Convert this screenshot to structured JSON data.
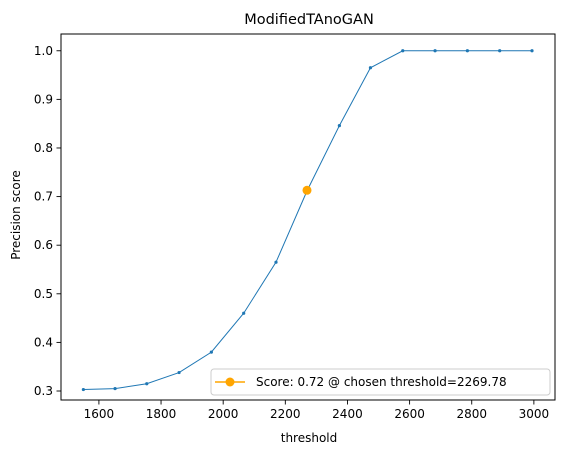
{
  "chart_data": {
    "type": "line",
    "title": "ModifiedTAnoGAN",
    "xlabel": "threshold",
    "ylabel": "Precision score",
    "xlim": [
      1478,
      3068
    ],
    "ylim": [
      0.2815,
      1.0345
    ],
    "x_ticks": [
      1600,
      1800,
      2000,
      2200,
      2400,
      2600,
      2800,
      3000
    ],
    "y_ticks": [
      0.3,
      0.4,
      0.5,
      0.6,
      0.7,
      0.8,
      0.9,
      1.0
    ],
    "y_tick_labels": [
      "0.3",
      "0.4",
      "0.5",
      "0.6",
      "0.7",
      "0.8",
      "0.9",
      "1.0"
    ],
    "grid": false,
    "series": [
      {
        "color": "#1f77b4",
        "marker": "dot",
        "x": [
          1550,
          1652,
          1754,
          1858,
          1962,
          2066,
          2170,
          2270,
          2374,
          2474,
          2578,
          2682,
          2786,
          2890,
          2994
        ],
        "y": [
          0.303,
          0.305,
          0.315,
          0.338,
          0.38,
          0.46,
          0.565,
          0.712,
          0.846,
          0.965,
          1.0,
          1.0,
          1.0,
          1.0,
          1.0
        ]
      }
    ],
    "highlight": {
      "name": "Score: 0.72 @ chosen threshold=2269.78",
      "x": 2269.78,
      "y": 0.713,
      "color": "#ffa500"
    },
    "legend_position": "lower-right"
  }
}
